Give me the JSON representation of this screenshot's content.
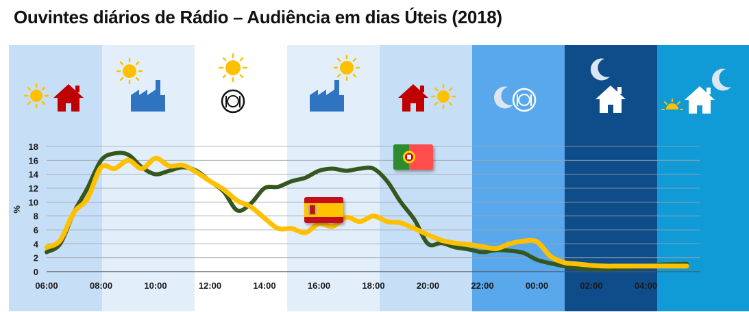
{
  "title": "Ouvintes diários de Rádio – Audiência em dias Úteis (2018)",
  "chart_data": {
    "type": "line",
    "title": "Ouvintes diários de Rádio – Audiência em dias Úteis (2018)",
    "xlabel": "",
    "ylabel": "%",
    "ylim": [
      0,
      18
    ],
    "yticks": [
      "0",
      "2",
      "4",
      "6",
      "8",
      "10",
      "12",
      "14",
      "16",
      "18"
    ],
    "xticks": [
      "06:00",
      "08:00",
      "10:00",
      "12:00",
      "14:00",
      "16:00",
      "18:00",
      "20:00",
      "22:00",
      "00:00",
      "02:00",
      "04:00"
    ],
    "x_hours": [
      6,
      6.5,
      7,
      7.5,
      8,
      8.5,
      9,
      9.5,
      10,
      10.5,
      11,
      11.5,
      12,
      12.5,
      13,
      13.5,
      14,
      14.5,
      15,
      15.5,
      16,
      16.5,
      17,
      17.5,
      18,
      18.5,
      19,
      19.5,
      20,
      20.5,
      21,
      21.5,
      22,
      22.5,
      23,
      23.5,
      24,
      24.5,
      25,
      25.5,
      26,
      26.5,
      27,
      27.5,
      28,
      28.5,
      29.5
    ],
    "series": [
      {
        "name": "Portugal",
        "color": "#35571f",
        "values": [
          2.8,
          4.0,
          8.5,
          12.0,
          16.0,
          17.0,
          16.8,
          15.0,
          14.0,
          14.5,
          15.0,
          14.5,
          13.0,
          11.5,
          8.8,
          9.8,
          12.0,
          12.2,
          13.0,
          13.5,
          14.5,
          14.8,
          14.5,
          14.8,
          14.8,
          13.0,
          10.0,
          7.5,
          4.0,
          4.1,
          3.5,
          3.2,
          2.8,
          3.1,
          3.0,
          2.7,
          1.7,
          1.2,
          0.8,
          0.5,
          0.4,
          0.4,
          0.5,
          0.6,
          0.7,
          1.0,
          1.1
        ]
      },
      {
        "name": "Espanha",
        "color": "#ffc000",
        "values": [
          3.5,
          4.5,
          8.5,
          10.5,
          15.0,
          14.8,
          16.0,
          14.8,
          16.3,
          15.2,
          15.3,
          14.3,
          13.0,
          11.8,
          10.2,
          9.3,
          7.7,
          6.2,
          6.2,
          5.6,
          6.9,
          6.5,
          7.8,
          7.2,
          8.0,
          7.2,
          7.0,
          6.2,
          5.3,
          4.5,
          4.1,
          3.9,
          3.6,
          3.3,
          4.0,
          4.4,
          4.3,
          2.2,
          1.3,
          1.1,
          0.9,
          0.8,
          0.8,
          0.8,
          0.8,
          0.8,
          0.8
        ]
      }
    ],
    "legend": "flag-icons"
  }
}
